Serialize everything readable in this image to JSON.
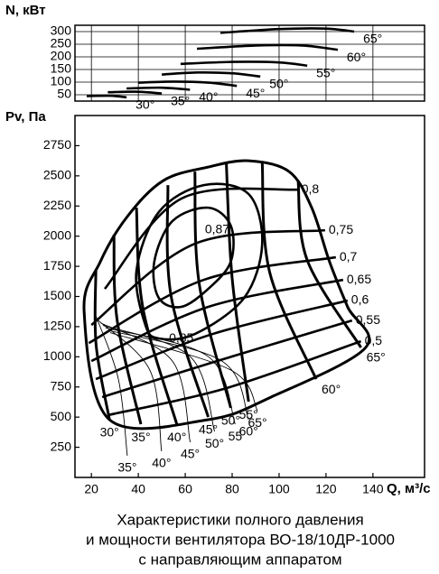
{
  "chart_data": [
    {
      "type": "line",
      "ylabel": "N, кВт",
      "color": "#000000",
      "grid": true,
      "xlim": [
        13,
        162
      ],
      "xticks": [
        20,
        40,
        60,
        80,
        100,
        120,
        140
      ],
      "ylim": [
        25,
        325
      ],
      "yticks": [
        50,
        100,
        150,
        200,
        250,
        300
      ],
      "series": [
        {
          "name": "30°",
          "x": [
            18,
            28,
            35
          ],
          "y": [
            45,
            46,
            40
          ]
        },
        {
          "name": "35°",
          "x": [
            27,
            40,
            50
          ],
          "y": [
            60,
            62,
            55
          ]
        },
        {
          "name": "40°",
          "x": [
            35,
            50,
            62
          ],
          "y": [
            75,
            78,
            70
          ]
        },
        {
          "name": "45°",
          "x": [
            40,
            55,
            70,
            82
          ],
          "y": [
            98,
            102,
            98,
            85
          ]
        },
        {
          "name": "50°",
          "x": [
            50,
            65,
            80,
            92
          ],
          "y": [
            130,
            138,
            135,
            122
          ]
        },
        {
          "name": "55°",
          "x": [
            58,
            80,
            100,
            112
          ],
          "y": [
            172,
            180,
            178,
            165
          ]
        },
        {
          "name": "60°",
          "x": [
            65,
            90,
            110,
            125
          ],
          "y": [
            232,
            245,
            245,
            228
          ]
        },
        {
          "name": "65°",
          "x": [
            75,
            100,
            120,
            132
          ],
          "y": [
            295,
            310,
            312,
            300
          ]
        }
      ]
    },
    {
      "type": "line",
      "ylabel": "Pv, Па",
      "xlabel": "Q, м³/с",
      "color": "#000000",
      "xlim": [
        13,
        162
      ],
      "xticks": [
        20,
        40,
        60,
        80,
        100,
        120,
        140
      ],
      "ylim": [
        0,
        3000
      ],
      "yticks": [
        250,
        500,
        750,
        1000,
        1250,
        1500,
        1750,
        2000,
        2250,
        2500,
        2750
      ],
      "outline": {
        "x": [
          16.9,
          23.8,
          35.3,
          50.7,
          69.8,
          87,
          104.3,
          113.9,
          121.5,
          129.2,
          136.9,
          96.6,
          69.8,
          27.7
        ],
        "y": [
          1376,
          1788,
          2162,
          2461,
          2573,
          2625,
          2535,
          2236,
          1788,
          1414,
          1077,
          666,
          479,
          479
        ]
      },
      "series": [
        {
          "name": "30°",
          "x": [
            21.9,
            22,
            27.7
          ],
          "y": [
            1713,
            1100,
            479
          ]
        },
        {
          "name": "35°",
          "x": [
            29.6,
            31,
            41.1
          ],
          "y": [
            2012,
            1300,
            441
          ]
        },
        {
          "name": "40°",
          "x": [
            39.2,
            42,
            56.4
          ],
          "y": [
            2236,
            1400,
            441
          ]
        },
        {
          "name": "45°",
          "x": [
            52.6,
            54,
            69.8
          ],
          "y": [
            2423,
            1500,
            501
          ]
        },
        {
          "name": "50°",
          "x": [
            64.1,
            66,
            79.4
          ],
          "y": [
            2535,
            1600,
            576
          ]
        },
        {
          "name": "55°",
          "x": [
            77.5,
            80,
            87
          ],
          "y": [
            2610,
            1650,
            628
          ]
        },
        {
          "name": "60°",
          "x": [
            92.8,
            96,
            115.8
          ],
          "y": [
            2610,
            1700,
            815
          ]
        },
        {
          "name": "65°",
          "x": [
            108.1,
            112,
            134.9
          ],
          "y": [
            2461,
            1800,
            1077
          ]
        }
      ],
      "efficiency": [
        {
          "name": "0,5",
          "x": [
            26.9,
            77.5,
            134.9
          ],
          "y": [
            516,
            740,
            1129
          ]
        },
        {
          "name": "0,55",
          "x": [
            24.6,
            73.6,
            131.1
          ],
          "y": [
            666,
            965,
            1301
          ]
        },
        {
          "name": "0,6",
          "x": [
            21.9,
            71.7,
            129.2
          ],
          "y": [
            815,
            1189,
            1466
          ]
        },
        {
          "name": "0,65",
          "x": [
            20,
            69.8,
            127.3
          ],
          "y": [
            965,
            1414,
            1638
          ]
        },
        {
          "name": "0,7",
          "x": [
            18.9,
            67.9,
            124.2
          ],
          "y": [
            1114,
            1638,
            1825
          ]
        },
        {
          "name": "0,75",
          "x": [
            20,
            64.1,
            119.6
          ],
          "y": [
            1264,
            1937,
            2049
          ]
        },
        {
          "name": "0,8",
          "x": [
            25.7,
            58.3,
            108
          ],
          "y": [
            1563,
            2311,
            2386
          ]
        },
        {
          "name": "0,85",
          "closed": true,
          "x": [
            64.1,
            48.7,
            43,
            39.2,
            48.7,
            67.9,
            87,
            92.8,
            85.1
          ],
          "y": [
            1189,
            1152,
            1264,
            1713,
            2199,
            2423,
            2349,
            1937,
            1488
          ]
        },
        {
          "name": "0,87",
          "closed": true,
          "x": [
            79.4,
            79.4,
            69.8,
            58.3,
            48.7,
            46.8,
            54.5,
            69.8
          ],
          "y": [
            2087,
            1788,
            1563,
            1414,
            1488,
            1788,
            2124,
            2236
          ]
        }
      ],
      "thin_series": [
        {
          "name": "35°",
          "x": [
            21.9,
            31.5,
            35.3
          ],
          "y": [
            1339,
            815,
            180
          ]
        },
        {
          "name": "40°",
          "x": [
            23,
            44.9,
            49.9
          ],
          "y": [
            1300,
            890,
            217
          ]
        },
        {
          "name": "45°",
          "x": [
            24,
            54.5,
            62.1
          ],
          "y": [
            1280,
            965,
            292
          ]
        },
        {
          "name": "50°",
          "x": [
            25,
            62.1,
            72.5
          ],
          "y": [
            1260,
            1002,
            381
          ]
        },
        {
          "name": "55",
          "x": [
            26,
            69.8,
            81.3
          ],
          "y": [
            1240,
            1002,
            441
          ]
        },
        {
          "name": "60°",
          "x": [
            27,
            75.6,
            87
          ],
          "y": [
            1220,
            965,
            479
          ]
        },
        {
          "name": "65°",
          "x": [
            28,
            79.4,
            90.8
          ],
          "y": [
            1200,
            890,
            553
          ]
        }
      ]
    }
  ],
  "caption": [
    "Характеристики полного давления",
    "и мощности вентилятора ВО-18/10ДР-1000",
    "с направляющим аппаратом"
  ]
}
